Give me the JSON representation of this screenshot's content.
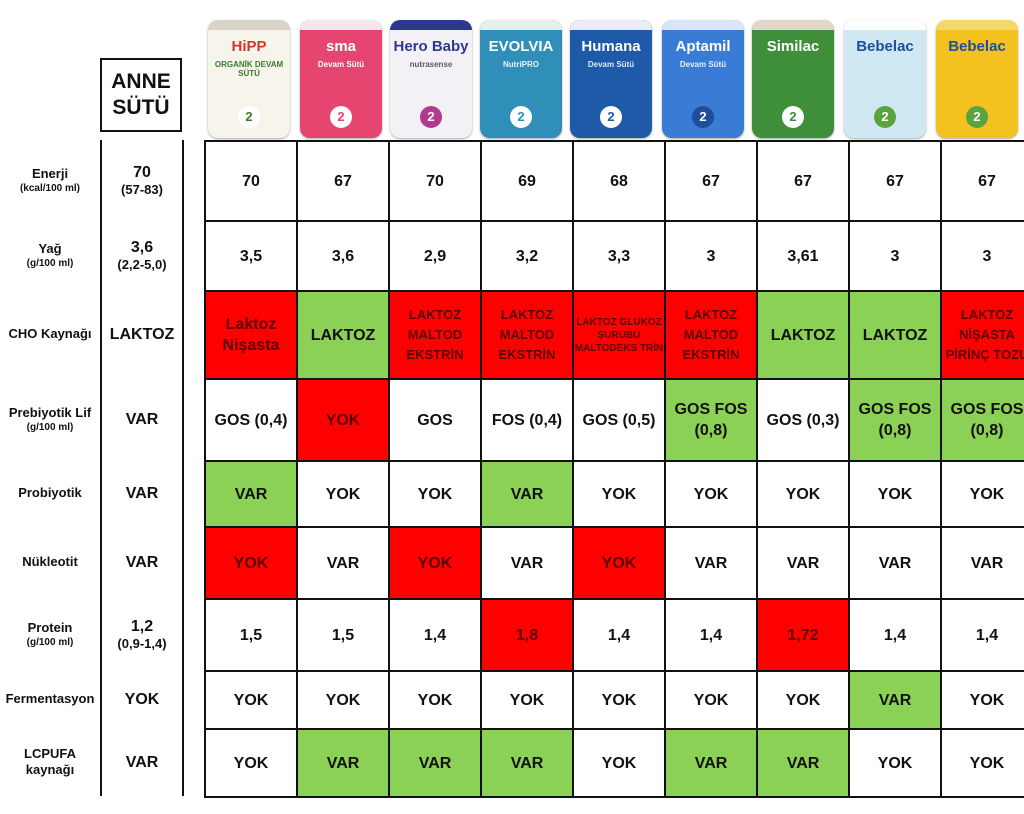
{
  "anne_sutu": {
    "line1": "ANNE",
    "line2": "SÜTÜ"
  },
  "brands": [
    {
      "logo": "HiPP",
      "tag": "ORGANİK DEVAM SÜTÜ",
      "number": "2",
      "bg": "#f7f4ec",
      "lid": "#d9d4c8",
      "logo_color": "#d0382e",
      "tag_color": "#3a7a2a",
      "num_bg": "#ffffff",
      "num_color": "#3a7a2a"
    },
    {
      "logo": "sma",
      "tag": "Devam Sütü",
      "number": "2",
      "bg": "#e6456f",
      "lid": "#f3e8ee",
      "logo_color": "#ffffff",
      "tag_color": "#ffffff",
      "num_bg": "#ffffff",
      "num_color": "#e6456f"
    },
    {
      "logo": "Hero Baby",
      "tag": "nutrasense",
      "number": "2",
      "bg": "#f4f1f6",
      "lid": "#2d3a8c",
      "logo_color": "#2d3a8c",
      "tag_color": "#5a5a6a",
      "num_bg": "#b03a8e",
      "num_color": "#ffffff"
    },
    {
      "logo": "EVOLVIA",
      "tag": "NutriPRO",
      "number": "2",
      "bg": "#2f8fb8",
      "lid": "#e9eef1",
      "logo_color": "#ffffff",
      "tag_color": "#e6f3ff",
      "num_bg": "#ffffff",
      "num_color": "#2f8fb8"
    },
    {
      "logo": "Humana",
      "tag": "Devam Sütü",
      "number": "2",
      "bg": "#1f5aa8",
      "lid": "#e7eef6",
      "logo_color": "#ffffff",
      "tag_color": "#dde8ff",
      "num_bg": "#ffffff",
      "num_color": "#1f5aa8"
    },
    {
      "logo": "Aptamil",
      "tag": "Devam Sütü",
      "number": "2",
      "bg": "#3a7bd5",
      "lid": "#d9e6f7",
      "logo_color": "#ffffff",
      "tag_color": "#e6f0ff",
      "num_bg": "#1d4f9c",
      "num_color": "#ffffff"
    },
    {
      "logo": "Similac",
      "tag": "",
      "number": "2",
      "bg": "#3f8f3a",
      "lid": "#e0d9c8",
      "logo_color": "#ffffff",
      "tag_color": "#ffffff",
      "num_bg": "#ffffff",
      "num_color": "#3f8f3a"
    },
    {
      "logo": "Bebelac",
      "tag": "",
      "number": "2",
      "bg": "#cfe8f2",
      "lid": "#ffffff",
      "logo_color": "#1d4f9c",
      "tag_color": "#1d4f9c",
      "num_bg": "#5aa43f",
      "num_color": "#ffffff"
    },
    {
      "logo": "Bebelac",
      "tag": "",
      "number": "2",
      "bg": "#f4c21e",
      "lid": "#f6d76a",
      "logo_color": "#1d4f9c",
      "tag_color": "#1d4f9c",
      "num_bg": "#5aa43f",
      "num_color": "#ffffff"
    }
  ],
  "rows": [
    {
      "label": "Enerji",
      "sub": "(kcal/100 ml)",
      "anne": "70",
      "anne_sub": "(57-83)",
      "cells": [
        {
          "t": "70"
        },
        {
          "t": "67"
        },
        {
          "t": "70"
        },
        {
          "t": "69"
        },
        {
          "t": "68"
        },
        {
          "t": "67"
        },
        {
          "t": "67"
        },
        {
          "t": "67"
        },
        {
          "t": "67"
        }
      ]
    },
    {
      "label": "Yağ",
      "sub": "(g/100 ml)",
      "anne": "3,6",
      "anne_sub": "(2,2-5,0)",
      "cells": [
        {
          "t": "3,5"
        },
        {
          "t": "3,6"
        },
        {
          "t": "2,9"
        },
        {
          "t": "3,2"
        },
        {
          "t": "3,3"
        },
        {
          "t": "3"
        },
        {
          "t": "3,61"
        },
        {
          "t": "3"
        },
        {
          "t": "3"
        }
      ]
    },
    {
      "label": "CHO Kaynağı",
      "sub": "",
      "anne": "LAKTOZ",
      "anne_sub": "",
      "cells": [
        {
          "t": "Laktoz Nişasta",
          "c": "red"
        },
        {
          "t": "LAKTOZ",
          "c": "green"
        },
        {
          "t": "LAKTOZ MALTOD EKSTRİN",
          "c": "red",
          "s": "sm"
        },
        {
          "t": "LAKTOZ MALTOD EKSTRİN",
          "c": "red",
          "s": "sm"
        },
        {
          "t": "LAKTOZ GLUKOZ ŞURUBU MALTODEKS TRİN",
          "c": "red",
          "s": "xs"
        },
        {
          "t": "LAKTOZ MALTOD EKSTRİN",
          "c": "red",
          "s": "sm"
        },
        {
          "t": "LAKTOZ",
          "c": "green"
        },
        {
          "t": "LAKTOZ",
          "c": "green"
        },
        {
          "t": "LAKTOZ NİŞASTA PİRİNÇ TOZU",
          "c": "red",
          "s": "sm"
        }
      ]
    },
    {
      "label": "Prebiyotik Lif",
      "sub": "(g/100 ml)",
      "anne": "VAR",
      "anne_sub": "",
      "cells": [
        {
          "t": "GOS (0,4)"
        },
        {
          "t": "YOK",
          "c": "red"
        },
        {
          "t": "GOS"
        },
        {
          "t": "FOS (0,4)"
        },
        {
          "t": "GOS (0,5)"
        },
        {
          "t": "GOS FOS (0,8)",
          "c": "green"
        },
        {
          "t": "GOS (0,3)"
        },
        {
          "t": "GOS FOS (0,8)",
          "c": "green"
        },
        {
          "t": "GOS FOS (0,8)",
          "c": "green"
        }
      ]
    },
    {
      "label": "Probiyotik",
      "sub": "",
      "anne": "VAR",
      "anne_sub": "",
      "cells": [
        {
          "t": "VAR",
          "c": "green"
        },
        {
          "t": "YOK"
        },
        {
          "t": "YOK"
        },
        {
          "t": "VAR",
          "c": "green"
        },
        {
          "t": "YOK"
        },
        {
          "t": "YOK"
        },
        {
          "t": "YOK"
        },
        {
          "t": "YOK"
        },
        {
          "t": "YOK"
        }
      ]
    },
    {
      "label": "Nükleotit",
      "sub": "",
      "anne": "VAR",
      "anne_sub": "",
      "cells": [
        {
          "t": "YOK",
          "c": "red"
        },
        {
          "t": "VAR"
        },
        {
          "t": "YOK",
          "c": "red"
        },
        {
          "t": "VAR"
        },
        {
          "t": "YOK",
          "c": "red"
        },
        {
          "t": "VAR"
        },
        {
          "t": "VAR"
        },
        {
          "t": "VAR"
        },
        {
          "t": "VAR"
        }
      ]
    },
    {
      "label": "Protein",
      "sub": "(g/100 ml)",
      "anne": "1,2",
      "anne_sub": "(0,9-1,4)",
      "cells": [
        {
          "t": "1,5"
        },
        {
          "t": "1,5"
        },
        {
          "t": "1,4"
        },
        {
          "t": "1,8",
          "c": "red"
        },
        {
          "t": "1,4"
        },
        {
          "t": "1,4"
        },
        {
          "t": "1,72",
          "c": "red"
        },
        {
          "t": "1,4"
        },
        {
          "t": "1,4"
        }
      ]
    },
    {
      "label": "Fermentasyon",
      "sub": "",
      "anne": "YOK",
      "anne_sub": "",
      "cells": [
        {
          "t": "YOK"
        },
        {
          "t": "YOK"
        },
        {
          "t": "YOK"
        },
        {
          "t": "YOK"
        },
        {
          "t": "YOK"
        },
        {
          "t": "YOK"
        },
        {
          "t": "YOK"
        },
        {
          "t": "VAR",
          "c": "green"
        },
        {
          "t": "YOK"
        }
      ]
    },
    {
      "label": "LCPUFA kaynağı",
      "sub": "",
      "anne": "VAR",
      "anne_sub": "",
      "cells": [
        {
          "t": "YOK"
        },
        {
          "t": "VAR",
          "c": "green"
        },
        {
          "t": "VAR",
          "c": "green"
        },
        {
          "t": "VAR",
          "c": "green"
        },
        {
          "t": "YOK"
        },
        {
          "t": "VAR",
          "c": "green"
        },
        {
          "t": "VAR",
          "c": "green"
        },
        {
          "t": "YOK"
        },
        {
          "t": "YOK"
        }
      ]
    }
  ]
}
